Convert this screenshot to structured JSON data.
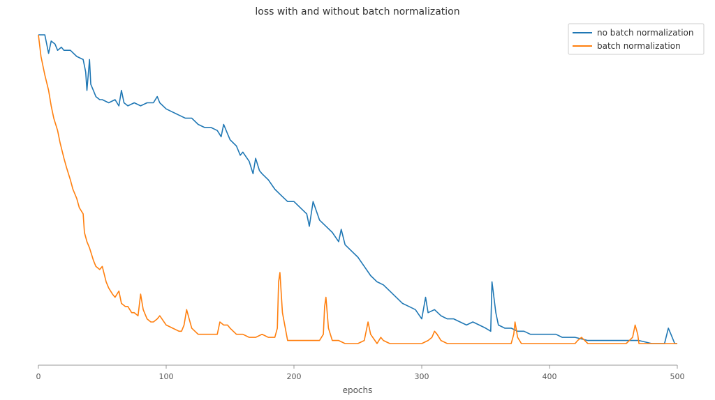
{
  "chart_data": {
    "type": "line",
    "title": "loss with and without batch normalization",
    "xlabel": "epochs",
    "ylabel": "",
    "xlim": [
      0,
      500
    ],
    "ylim": [
      0,
      1.09
    ],
    "xticks": [
      0,
      100,
      200,
      300,
      400,
      500
    ],
    "grid": false,
    "legend_position": "top-right",
    "series": [
      {
        "name": "no batch normalization",
        "color": "#1f77b4",
        "x": [
          0,
          5,
          8,
          10,
          13,
          15,
          18,
          20,
          25,
          30,
          35,
          37,
          38,
          40,
          41,
          43,
          45,
          48,
          50,
          55,
          60,
          63,
          65,
          67,
          70,
          75,
          80,
          85,
          90,
          93,
          95,
          100,
          105,
          110,
          115,
          120,
          125,
          130,
          135,
          140,
          143,
          145,
          148,
          150,
          155,
          158,
          160,
          165,
          168,
          170,
          173,
          175,
          180,
          185,
          190,
          195,
          200,
          205,
          210,
          212,
          215,
          220,
          225,
          230,
          235,
          237,
          240,
          245,
          250,
          255,
          260,
          265,
          270,
          275,
          280,
          285,
          290,
          295,
          300,
          303,
          305,
          310,
          315,
          320,
          325,
          330,
          335,
          340,
          345,
          350,
          354,
          355,
          358,
          360,
          365,
          370,
          375,
          380,
          385,
          390,
          395,
          400,
          405,
          410,
          420,
          430,
          440,
          450,
          460,
          470,
          480,
          485,
          490,
          493,
          495,
          498,
          500
        ],
        "y": [
          1.0,
          1.0,
          0.94,
          0.98,
          0.97,
          0.95,
          0.96,
          0.95,
          0.95,
          0.93,
          0.92,
          0.88,
          0.82,
          0.92,
          0.84,
          0.82,
          0.8,
          0.79,
          0.79,
          0.78,
          0.79,
          0.77,
          0.82,
          0.78,
          0.77,
          0.78,
          0.77,
          0.78,
          0.78,
          0.8,
          0.78,
          0.76,
          0.75,
          0.74,
          0.73,
          0.73,
          0.71,
          0.7,
          0.7,
          0.69,
          0.67,
          0.71,
          0.68,
          0.66,
          0.64,
          0.61,
          0.62,
          0.59,
          0.55,
          0.6,
          0.56,
          0.55,
          0.53,
          0.5,
          0.48,
          0.46,
          0.46,
          0.44,
          0.42,
          0.38,
          0.46,
          0.4,
          0.38,
          0.36,
          0.33,
          0.37,
          0.32,
          0.3,
          0.28,
          0.25,
          0.22,
          0.2,
          0.19,
          0.17,
          0.15,
          0.13,
          0.12,
          0.11,
          0.08,
          0.15,
          0.1,
          0.11,
          0.09,
          0.08,
          0.08,
          0.07,
          0.06,
          0.07,
          0.06,
          0.05,
          0.04,
          0.2,
          0.1,
          0.06,
          0.05,
          0.05,
          0.04,
          0.04,
          0.03,
          0.03,
          0.03,
          0.03,
          0.03,
          0.02,
          0.02,
          0.01,
          0.01,
          0.01,
          0.01,
          0.01,
          0.0,
          0.0,
          0.0,
          0.05,
          0.03,
          0.0,
          0.0
        ]
      },
      {
        "name": "batch normalization",
        "color": "#ff7f0e",
        "x": [
          0,
          2,
          5,
          8,
          10,
          12,
          15,
          17,
          20,
          22,
          25,
          27,
          30,
          32,
          35,
          36,
          38,
          40,
          43,
          45,
          48,
          50,
          53,
          55,
          58,
          60,
          63,
          65,
          68,
          70,
          73,
          75,
          78,
          80,
          82,
          85,
          88,
          90,
          93,
          95,
          100,
          105,
          110,
          112,
          114,
          116,
          118,
          120,
          125,
          130,
          135,
          140,
          142,
          145,
          148,
          150,
          155,
          160,
          165,
          170,
          175,
          180,
          185,
          187,
          188,
          189,
          191,
          195,
          200,
          205,
          210,
          215,
          220,
          223,
          224,
          225,
          227,
          230,
          235,
          240,
          245,
          250,
          255,
          258,
          260,
          265,
          268,
          270,
          275,
          280,
          290,
          300,
          305,
          308,
          310,
          312,
          315,
          320,
          330,
          340,
          350,
          360,
          370,
          372,
          373,
          375,
          378,
          380,
          390,
          400,
          410,
          420,
          422,
          425,
          430,
          440,
          450,
          460,
          465,
          467,
          469,
          470,
          480,
          490,
          495,
          500
        ],
        "y": [
          1.0,
          0.93,
          0.87,
          0.82,
          0.77,
          0.73,
          0.69,
          0.65,
          0.6,
          0.57,
          0.53,
          0.5,
          0.47,
          0.44,
          0.42,
          0.36,
          0.33,
          0.31,
          0.27,
          0.25,
          0.24,
          0.25,
          0.2,
          0.18,
          0.16,
          0.15,
          0.17,
          0.13,
          0.12,
          0.12,
          0.1,
          0.1,
          0.09,
          0.16,
          0.11,
          0.08,
          0.07,
          0.07,
          0.08,
          0.09,
          0.06,
          0.05,
          0.04,
          0.04,
          0.06,
          0.11,
          0.08,
          0.05,
          0.03,
          0.03,
          0.03,
          0.03,
          0.07,
          0.06,
          0.06,
          0.05,
          0.03,
          0.03,
          0.02,
          0.02,
          0.03,
          0.02,
          0.02,
          0.05,
          0.2,
          0.23,
          0.1,
          0.01,
          0.01,
          0.01,
          0.01,
          0.01,
          0.01,
          0.03,
          0.12,
          0.15,
          0.05,
          0.01,
          0.01,
          0.0,
          0.0,
          0.0,
          0.01,
          0.07,
          0.03,
          0.0,
          0.02,
          0.01,
          0.0,
          0.0,
          0.0,
          0.0,
          0.01,
          0.02,
          0.04,
          0.03,
          0.01,
          0.0,
          0.0,
          0.0,
          0.0,
          0.0,
          0.0,
          0.03,
          0.07,
          0.02,
          0.0,
          0.0,
          0.0,
          0.0,
          0.0,
          0.0,
          0.01,
          0.02,
          0.0,
          0.0,
          0.0,
          0.0,
          0.02,
          0.06,
          0.03,
          0.0,
          0.0,
          0.0,
          0.0,
          0.0
        ]
      }
    ]
  }
}
